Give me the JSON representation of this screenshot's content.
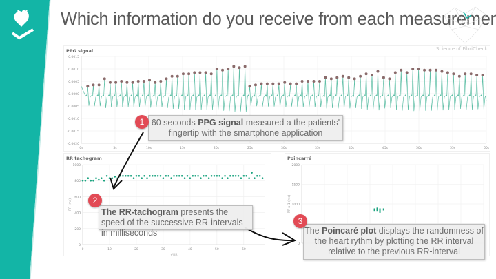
{
  "header": {
    "title": "Which information do you receive from each measurement?",
    "brand": "Science of FibriCheck"
  },
  "colors": {
    "accent": "#13b5a6",
    "series": "#5fbfa6",
    "peak": "#8a6b6b",
    "badge": "#e24a55"
  },
  "icons": {
    "logo": "heart-check-icon",
    "network": "heart-network-icon"
  },
  "callouts": [
    {
      "num": "1",
      "pre": "60 seconds ",
      "bold": "PPG signal",
      "post": " measured a the patients' fingertip with the smartphone application"
    },
    {
      "num": "2",
      "pre": "",
      "bold": "The RR-tachogram",
      "post": " presents the speed  of the successive RR-intervals in milliseconds"
    },
    {
      "num": "3",
      "pre": "The ",
      "bold": "Poincaré plot",
      "post": " displays the randomness of the heart rythm by plotting the RR interval relative to the previous RR-interval"
    }
  ],
  "chart_data": [
    {
      "type": "line",
      "title": "PPG signal",
      "xlim": [
        0,
        60
      ],
      "ylim": [
        -0.002,
        0.0015
      ],
      "xticks": [
        "0s",
        "5s",
        "10s",
        "15s",
        "20s",
        "25s",
        "30s",
        "35s",
        "40s",
        "45s",
        "50s",
        "55s",
        "60s"
      ],
      "yticks": [
        "0.0015",
        "0.0010",
        "0.0005",
        "0.0000",
        "-0.0005",
        "-0.0010",
        "-0.0015",
        "-0.0020"
      ],
      "grid": true,
      "peak_segments": [
        {
          "start_s": 1,
          "end_s": 24.3,
          "peaks": [
            0.0003,
            0.00035,
            0.00035,
            0.0006,
            0.00045,
            0.00045,
            0.0005,
            0.00045,
            0.00045,
            0.0005,
            0.0005,
            0.00055,
            0.00045,
            0.0005,
            0.0006,
            0.0007,
            0.0007,
            0.0008,
            0.0008,
            0.00085,
            0.00085,
            0.00085,
            0.0008,
            0.001,
            0.00095,
            0.001,
            0.0011,
            0.00105,
            0.0011
          ]
        },
        {
          "start_s": 25,
          "end_s": 59.5,
          "peaks": [
            0.0003,
            0.00035,
            0.0004,
            0.0004,
            0.0004,
            0.0004,
            0.00045,
            0.0004,
            0.0004,
            0.0005,
            0.0005,
            0.0005,
            0.0005,
            0.00065,
            0.0006,
            0.00065,
            0.0007,
            0.00065,
            0.0006,
            0.0007,
            0.0008,
            0.00075,
            0.0009,
            0.00065,
            0.0006,
            0.00085,
            0.00095,
            0.00085,
            0.001,
            0.001,
            0.00095,
            0.00095,
            0.00095,
            0.0009,
            0.00085,
            0.0008,
            0.0007,
            0.0008,
            0.0008,
            0.00075,
            0.00075
          ]
        }
      ]
    },
    {
      "type": "scatter",
      "title": "RR tachogram",
      "xlabel": "#RR",
      "ylabel": "RR (ms)",
      "xlim": [
        0,
        68
      ],
      "ylim": [
        0,
        1000
      ],
      "xticks": [
        "0",
        "10",
        "20",
        "30",
        "40",
        "50",
        "60"
      ],
      "yticks": [
        "0",
        "200",
        "400",
        "600",
        "800",
        "1000"
      ],
      "grid": true,
      "values": [
        800,
        800,
        830,
        800,
        800,
        830,
        810,
        830,
        800,
        860,
        830,
        830,
        850,
        830,
        860,
        860,
        860,
        860,
        860,
        830,
        860,
        860,
        830,
        860,
        830,
        860,
        860,
        860,
        860,
        860,
        830,
        860,
        860,
        830,
        860,
        860,
        860,
        860,
        830,
        860,
        830,
        860,
        860,
        860,
        830,
        860,
        860,
        830,
        860,
        860,
        860,
        860,
        830,
        860,
        830,
        860,
        860,
        860,
        860,
        830,
        860,
        860,
        830,
        900,
        830,
        860,
        860,
        830
      ]
    },
    {
      "type": "scatter",
      "title": "Poincarré",
      "ylabel": "RR n-1 (ms)",
      "xlim": [
        0,
        2000
      ],
      "ylim": [
        0,
        2000
      ],
      "yticks": [
        "0",
        "500",
        "1000",
        "1500",
        "2000"
      ],
      "grid": true,
      "points": [
        [
          800,
          830
        ],
        [
          800,
          860
        ],
        [
          830,
          860
        ],
        [
          830,
          830
        ],
        [
          860,
          860
        ],
        [
          860,
          830
        ],
        [
          860,
          800
        ],
        [
          900,
          860
        ],
        [
          830,
          880
        ]
      ]
    }
  ]
}
